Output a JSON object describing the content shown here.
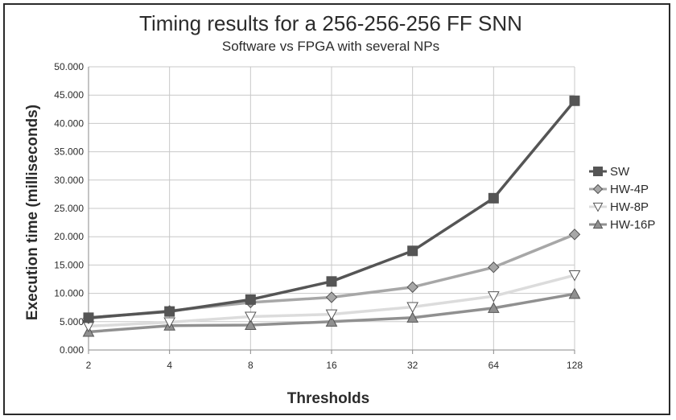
{
  "chart_data": {
    "type": "line",
    "title": "Timing results for a 256-256-256 FF SNN",
    "subtitle": "Software vs FPGA with several NPs",
    "xlabel": "Thresholds",
    "ylabel": "Execution time (milliseconds)",
    "categories": [
      "2",
      "4",
      "8",
      "16",
      "32",
      "64",
      "128"
    ],
    "yticks": [
      "0.000",
      "5.000",
      "10.000",
      "15.000",
      "20.000",
      "25.000",
      "30.000",
      "35.000",
      "40.000",
      "45.000",
      "50.000"
    ],
    "ylim": [
      0,
      50000
    ],
    "grid": true,
    "legend_position": "right",
    "series": [
      {
        "name": "SW",
        "marker": "square",
        "color": "#555555",
        "marker_fill": "#555555",
        "values": [
          5700,
          6800,
          8900,
          12100,
          17500,
          26800,
          44000
        ]
      },
      {
        "name": "HW-4P",
        "marker": "diamond",
        "color": "#a7a7a7",
        "marker_fill": "#a7a7a7",
        "values": [
          5600,
          6900,
          8400,
          9300,
          11100,
          14600,
          20400
        ]
      },
      {
        "name": "HW-8P",
        "marker": "triangle-down",
        "color": "#dcdcdc",
        "marker_fill": "#ffffff",
        "values": [
          4200,
          4900,
          5900,
          6300,
          7600,
          9500,
          13200
        ]
      },
      {
        "name": "HW-16P",
        "marker": "triangle-up",
        "color": "#909090",
        "marker_fill": "#909090",
        "values": [
          3200,
          4300,
          4400,
          5000,
          5700,
          7400,
          9900
        ]
      }
    ]
  }
}
